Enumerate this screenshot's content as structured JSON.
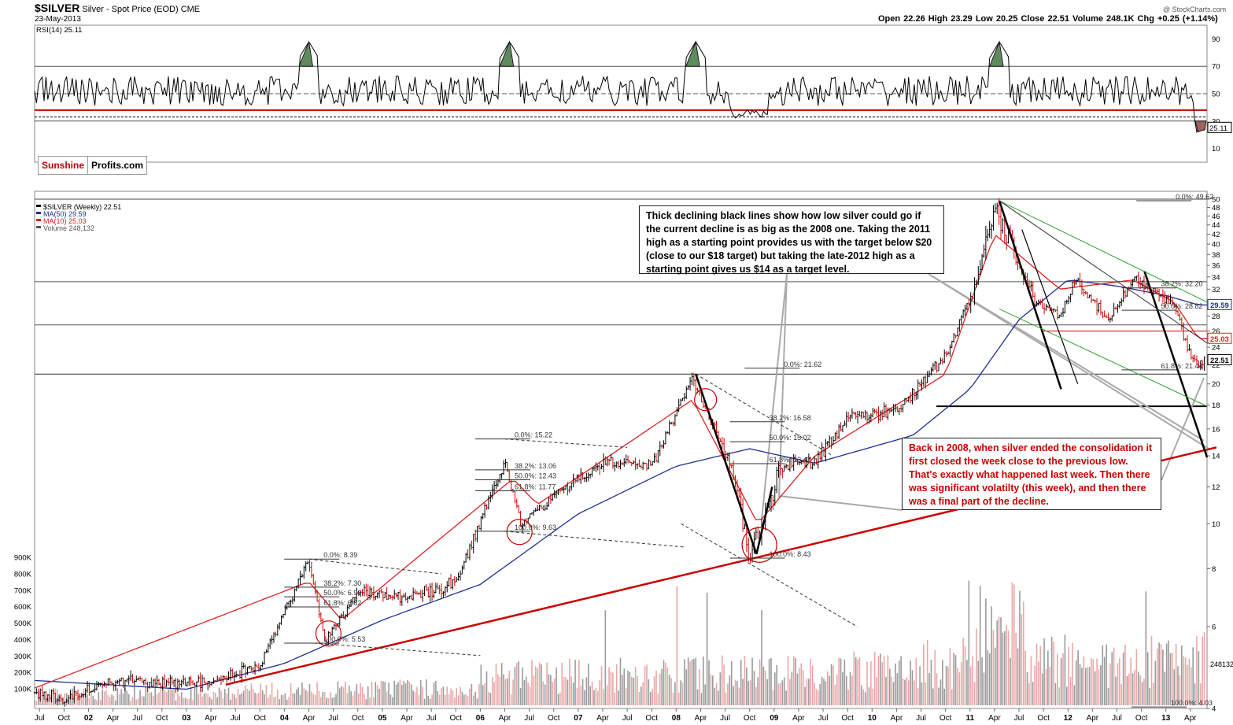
{
  "header": {
    "ticker": "$SILVER",
    "name": "Silver - Spot Price (EOD)",
    "exchange": "CME",
    "date": "23-May-2013",
    "watermark": "@ StockCharts.com",
    "quote": "Open 22.26  High 23.29  Low 20.25  Close 22.51  Volume 248.1K  Chg +0.25 (+1.14%)"
  },
  "logo": {
    "part1": "Sunshine",
    "part2": "Profits.com"
  },
  "rsi_panel": {
    "label": "RSI(14) 25.11",
    "ticks": [
      "90",
      "70",
      "50",
      "30",
      "10"
    ],
    "last_value": "25.11"
  },
  "price_panel": {
    "legend": [
      "$SILVER (Weekly) 22.51",
      "MA(50) 29.59",
      "MA(10) 25.03",
      "Volume 248,132"
    ],
    "right_ticks": [
      "50",
      "48",
      "46",
      "44",
      "42",
      "40",
      "38",
      "36",
      "34",
      "32",
      "30",
      "28",
      "26",
      "24",
      "22",
      "20",
      "18",
      "16",
      "14",
      "12",
      "10",
      "8",
      "6",
      "4"
    ],
    "last_labels": [
      "29.59",
      "25.03",
      "22.51"
    ],
    "volume_last": "248132",
    "volume_ticks": [
      "900K",
      "800K",
      "700K",
      "600K",
      "500K",
      "400K",
      "300K",
      "200K",
      "100K"
    ]
  },
  "x_axis": [
    {
      "year_tick": "Jul"
    },
    {
      "year_tick": "Oct"
    },
    {
      "year_tick": "02"
    },
    {
      "year_tick": "Apr"
    },
    {
      "year_tick": "Jul"
    },
    {
      "year_tick": "Oct"
    },
    {
      "year_tick": "03"
    },
    {
      "year_tick": "Apr"
    },
    {
      "year_tick": "Jul"
    },
    {
      "year_tick": "Oct"
    },
    {
      "year_tick": "04"
    },
    {
      "year_tick": "Apr"
    },
    {
      "year_tick": "Jul"
    },
    {
      "year_tick": "Oct"
    },
    {
      "year_tick": "05"
    },
    {
      "year_tick": "Apr"
    },
    {
      "year_tick": "Jul"
    },
    {
      "year_tick": "Oct"
    },
    {
      "year_tick": "06"
    },
    {
      "year_tick": "Apr"
    },
    {
      "year_tick": "Jul"
    },
    {
      "year_tick": "Oct"
    },
    {
      "year_tick": "07"
    },
    {
      "year_tick": "Apr"
    },
    {
      "year_tick": "Jul"
    },
    {
      "year_tick": "Oct"
    },
    {
      "year_tick": "08"
    },
    {
      "year_tick": "Apr"
    },
    {
      "year_tick": "Jul"
    },
    {
      "year_tick": "Oct"
    },
    {
      "year_tick": "09"
    },
    {
      "year_tick": "Apr"
    },
    {
      "year_tick": "Jul"
    },
    {
      "year_tick": "Oct"
    },
    {
      "year_tick": "10"
    },
    {
      "year_tick": "Apr"
    },
    {
      "year_tick": "Jul"
    },
    {
      "year_tick": "Oct"
    },
    {
      "year_tick": "11"
    },
    {
      "year_tick": "Apr"
    },
    {
      "year_tick": "Jul"
    },
    {
      "year_tick": "Oct"
    },
    {
      "year_tick": "12"
    },
    {
      "year_tick": "Apr"
    },
    {
      "year_tick": "Jul"
    },
    {
      "year_tick": "Oct"
    },
    {
      "year_tick": "13"
    },
    {
      "year_tick": "Apr"
    }
  ],
  "annotations": {
    "callout_black": "Thick declining black lines show how low silver could go if the current decline is as big as the 2008 one. Taking the 2011 high as a starting point provides us with the target below $20 (close to our $18 target) but taking the late-2012 high as a starting point gives us $14 as a target level.",
    "callout_red": "Back in 2008, when silver ended the consolidation it first closed the week close to the previous low. That's exactly what happened last week. Then there was significant volatilty (this week), and then there was a final part of the decline.",
    "fib_labels": [
      "0.0%: 8.39",
      "38.2%: 7.30",
      "50.0%: 6.96",
      "61.8%: 6.62",
      "100.0%: 5.53",
      "0.0%: 15.22",
      "38.2%: 13.06",
      "50.0%: 12.43",
      "61.8%: 11.77",
      "100.0%: 9.63",
      "0.0%: 21.62",
      "38.2%: 16.58",
      "50.0%: 15.02",
      "61.8%: 13.47",
      "100.0%: 8.43",
      "0.0%: 49.62",
      "38.2%: 32.20",
      "50.0%: 28.82",
      "61.8%: 21.44",
      "100.0%: 4.03"
    ]
  },
  "colors": {
    "price_up": "#000000",
    "price_down": "#cc0000",
    "ma50": "#1f2f8f",
    "ma10": "#dd2222",
    "trendline": "#cc0000",
    "rsi_fill": "#5e8a5e",
    "rsi_oversold_fill": "#a06060",
    "green_channel": "#2e9e2e",
    "callout_red_text": "#cc0000"
  },
  "chart_data": {
    "type": "line",
    "title": "$SILVER Silver - Spot Price (EOD) CME",
    "x_range": [
      "2001-06",
      "2013-05"
    ],
    "y_scale": "log",
    "ylim": [
      4,
      50
    ],
    "series": [
      {
        "name": "$SILVER (Weekly)",
        "x": [
          "2001-06",
          "2001-10",
          "2002-04",
          "2002-10",
          "2003-04",
          "2003-10",
          "2004-04",
          "2004-06",
          "2004-10",
          "2005-04",
          "2005-10",
          "2006-04",
          "2006-06",
          "2006-10",
          "2007-04",
          "2007-10",
          "2008-03",
          "2008-05",
          "2008-08",
          "2008-10",
          "2009-02",
          "2009-06",
          "2009-10",
          "2010-04",
          "2010-10",
          "2011-02",
          "2011-04",
          "2011-07",
          "2011-09",
          "2011-12",
          "2012-02",
          "2012-06",
          "2012-09",
          "2012-12",
          "2013-02",
          "2013-04",
          "2013-05"
        ],
        "values": [
          4.35,
          4.15,
          4.6,
          4.55,
          4.55,
          4.95,
          8.39,
          5.53,
          7.2,
          6.9,
          7.5,
          13.5,
          10.0,
          11.5,
          13.5,
          13.3,
          20.5,
          17.0,
          13.0,
          8.43,
          13.5,
          13.5,
          17.0,
          17.5,
          23.0,
          34.0,
          48.5,
          37.0,
          30.0,
          28.0,
          34.0,
          27.0,
          34.0,
          31.0,
          30.0,
          23.0,
          22.51
        ]
      },
      {
        "name": "MA(50)",
        "x": [
          "2001-06",
          "2003-01",
          "2004-01",
          "2005-01",
          "2006-01",
          "2007-01",
          "2008-01",
          "2008-10",
          "2009-06",
          "2010-06",
          "2011-01",
          "2011-07",
          "2012-01",
          "2012-07",
          "2013-01",
          "2013-05"
        ],
        "values": [
          4.6,
          4.4,
          5.0,
          6.2,
          7.4,
          10.5,
          13.3,
          14.5,
          13.5,
          15.5,
          19.5,
          27.5,
          33.5,
          32.5,
          31.0,
          29.59
        ]
      },
      {
        "name": "MA(10)",
        "x": [
          "2001-06",
          "2004-04",
          "2004-08",
          "2006-05",
          "2006-08",
          "2008-03",
          "2008-11",
          "2009-06",
          "2010-10",
          "2011-04",
          "2011-12",
          "2012-09",
          "2013-02",
          "2013-05"
        ],
        "values": [
          4.4,
          7.5,
          6.2,
          12.5,
          11.0,
          18.5,
          10.0,
          14.0,
          21.0,
          42.0,
          32.0,
          33.5,
          30.0,
          25.03
        ]
      }
    ],
    "rsi": {
      "name": "RSI(14)",
      "ylim": [
        0,
        100
      ],
      "last": 25.11,
      "levels": [
        30,
        50,
        70
      ]
    },
    "volume": {
      "name": "Volume",
      "last": 248132,
      "ylim": [
        0,
        900000
      ]
    }
  }
}
